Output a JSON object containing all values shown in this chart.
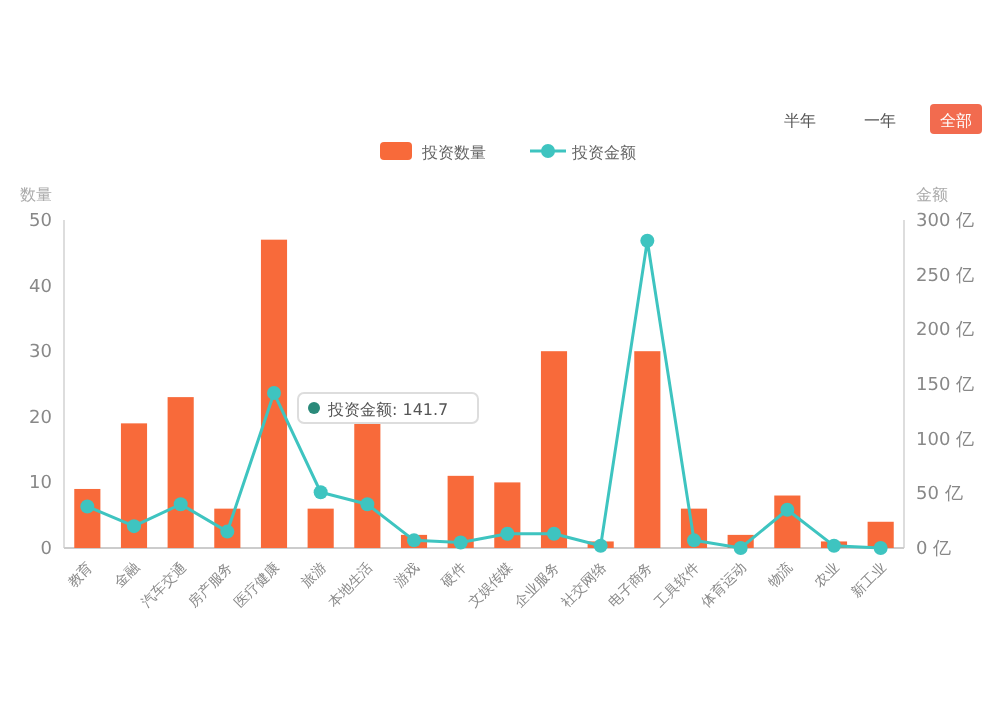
{
  "chart_data": {
    "type": "bar",
    "xlabel": null,
    "ylabel": "数量",
    "y2label": "金额",
    "categories": [
      "教育",
      "金融",
      "汽车交通",
      "房产服务",
      "医疗健康",
      "旅游",
      "本地生活",
      "游戏",
      "硬件",
      "文娱传媒",
      "企业服务",
      "社交网络",
      "电子商务",
      "工具软件",
      "体育运动",
      "物流",
      "农业",
      "新工业"
    ],
    "series": [
      {
        "name": "投资数量",
        "color": "#f86a3a",
        "values": [
          9,
          19,
          23,
          6,
          47,
          6,
          19,
          2,
          11,
          10,
          30,
          1,
          30,
          6,
          2,
          8,
          1,
          4
        ]
      },
      {
        "name": "投资金额",
        "type": "line",
        "axis": "y2",
        "color": "#3ec4c0",
        "marker": "circle",
        "values": [
          38,
          20,
          40,
          15,
          141.7,
          51,
          40,
          7,
          5,
          13,
          13,
          2,
          281,
          7,
          0,
          35,
          2,
          0
        ]
      }
    ],
    "ylim": [
      0,
      50
    ],
    "yticks": [
      0,
      10,
      20,
      30,
      40,
      50
    ],
    "y2lim": [
      0,
      300
    ],
    "y2ticks": [
      {
        "value": 0,
        "label": "0 亿"
      },
      {
        "value": 50,
        "label": "50 亿"
      },
      {
        "value": 100,
        "label": "100 亿"
      },
      {
        "value": 150,
        "label": "150 亿"
      },
      {
        "value": 200,
        "label": "200 亿"
      },
      {
        "value": 250,
        "label": "250 亿"
      },
      {
        "value": 300,
        "label": "300 亿"
      }
    ],
    "legend": "top",
    "grid": false,
    "annotations": [
      "半年",
      "一年",
      "全部",
      "投资金额: 141.7"
    ]
  }
}
